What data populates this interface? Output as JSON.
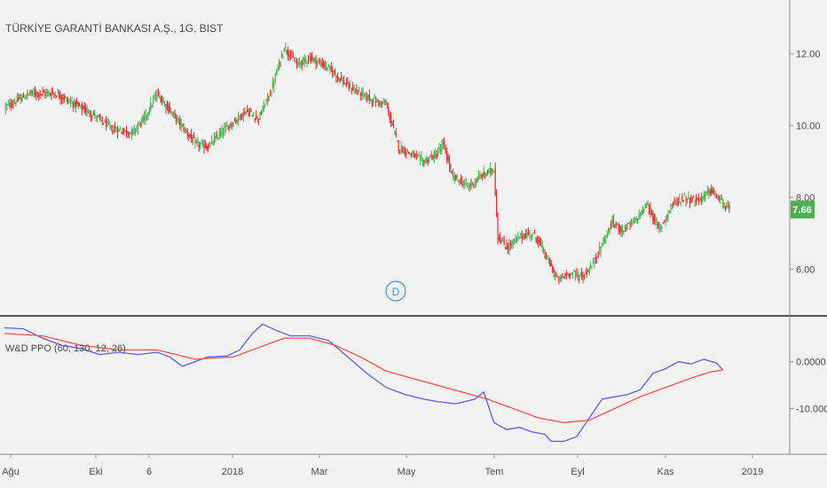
{
  "chart_data": [
    {
      "type": "candlestick",
      "title": "TÜRKİYE GARANTİ BANKASI A.Ş., 1G, BIST",
      "ylim": [
        4.8,
        13.2
      ],
      "y_ticks": [
        6,
        8,
        10,
        12
      ],
      "y_tick_labels": [
        "6.00",
        "8.00",
        "10.00",
        "12.00"
      ],
      "last_price": 7.66,
      "last_price_label": "7.66",
      "up_color": "#4caf50",
      "down_color": "#d32f2f",
      "close_anchors": [
        [
          0,
          10.5
        ],
        [
          20,
          10.9
        ],
        [
          40,
          10.9
        ],
        [
          55,
          10.6
        ],
        [
          70,
          10.3
        ],
        [
          85,
          9.9
        ],
        [
          100,
          9.8
        ],
        [
          110,
          10.2
        ],
        [
          120,
          10.9
        ],
        [
          135,
          10.2
        ],
        [
          150,
          9.5
        ],
        [
          160,
          9.4
        ],
        [
          170,
          9.8
        ],
        [
          180,
          10.1
        ],
        [
          190,
          10.4
        ],
        [
          200,
          10.2
        ],
        [
          210,
          11.0
        ],
        [
          220,
          12.2
        ],
        [
          230,
          11.7
        ],
        [
          240,
          11.9
        ],
        [
          255,
          11.6
        ],
        [
          270,
          11.1
        ],
        [
          280,
          10.9
        ],
        [
          290,
          10.7
        ],
        [
          300,
          10.6
        ],
        [
          310,
          9.4
        ],
        [
          320,
          9.2
        ],
        [
          330,
          9.0
        ],
        [
          340,
          9.2
        ],
        [
          345,
          9.5
        ],
        [
          352,
          8.6
        ],
        [
          365,
          8.3
        ],
        [
          375,
          8.6
        ],
        [
          385,
          8.8
        ],
        [
          388,
          6.9
        ],
        [
          395,
          6.6
        ],
        [
          405,
          6.9
        ],
        [
          415,
          7.0
        ],
        [
          420,
          6.8
        ],
        [
          428,
          6.2
        ],
        [
          435,
          5.7
        ],
        [
          445,
          5.9
        ],
        [
          455,
          5.8
        ],
        [
          462,
          6.1
        ],
        [
          470,
          6.7
        ],
        [
          478,
          7.3
        ],
        [
          485,
          7.1
        ],
        [
          495,
          7.3
        ],
        [
          505,
          7.8
        ],
        [
          515,
          7.1
        ],
        [
          525,
          7.8
        ],
        [
          535,
          8.0
        ],
        [
          545,
          7.9
        ],
        [
          555,
          8.2
        ],
        [
          562,
          7.95
        ],
        [
          570,
          7.66
        ]
      ]
    },
    {
      "type": "line",
      "title": "W&D PPO (60, 130, 12, 26)",
      "ylim": [
        -19,
        9
      ],
      "y_ticks": [
        0,
        -10
      ],
      "y_tick_labels": [
        "0.0000",
        "-10.0000"
      ],
      "x_tick_labels": [
        "Ağu",
        "Eki",
        "6",
        "2018",
        "Mar",
        "May",
        "Tem",
        "Eyl",
        "Kas",
        "2019"
      ],
      "series": [
        {
          "color": "#5b5fe8",
          "points": [
            [
              0,
              7.2
            ],
            [
              15,
              7.0
            ],
            [
              30,
              5.0
            ],
            [
              45,
              3.5
            ],
            [
              60,
              2.8
            ],
            [
              75,
              1.5
            ],
            [
              90,
              2.0
            ],
            [
              105,
              1.5
            ],
            [
              120,
              2.0
            ],
            [
              130,
              1.0
            ],
            [
              140,
              -1.0
            ],
            [
              150,
              0.0
            ],
            [
              160,
              1.0
            ],
            [
              175,
              1.2
            ],
            [
              185,
              2.5
            ],
            [
              195,
              6.0
            ],
            [
              203,
              8.0
            ],
            [
              215,
              6.5
            ],
            [
              225,
              5.5
            ],
            [
              240,
              5.5
            ],
            [
              255,
              4.5
            ],
            [
              270,
              1.0
            ],
            [
              285,
              -2.5
            ],
            [
              300,
              -5.5
            ],
            [
              315,
              -7.0
            ],
            [
              330,
              -8.0
            ],
            [
              340,
              -8.5
            ],
            [
              355,
              -9.0
            ],
            [
              370,
              -8.0
            ],
            [
              377,
              -6.5
            ],
            [
              385,
              -13.0
            ],
            [
              395,
              -14.5
            ],
            [
              405,
              -14.0
            ],
            [
              415,
              -15.0
            ],
            [
              425,
              -15.5
            ],
            [
              430,
              -17.0
            ],
            [
              440,
              -17.0
            ],
            [
              450,
              -16.0
            ],
            [
              460,
              -12.0
            ],
            [
              470,
              -8.0
            ],
            [
              480,
              -7.5
            ],
            [
              490,
              -7.0
            ],
            [
              500,
              -6.0
            ],
            [
              510,
              -2.5
            ],
            [
              520,
              -1.5
            ],
            [
              530,
              0.0
            ],
            [
              540,
              -0.5
            ],
            [
              550,
              0.5
            ],
            [
              560,
              -0.3
            ],
            [
              565,
              -1.8
            ]
          ]
        },
        {
          "color": "#ef5350",
          "points": [
            [
              0,
              6.0
            ],
            [
              30,
              5.5
            ],
            [
              60,
              3.5
            ],
            [
              90,
              2.5
            ],
            [
              120,
              2.5
            ],
            [
              150,
              0.5
            ],
            [
              180,
              1.0
            ],
            [
              200,
              3.0
            ],
            [
              220,
              5.0
            ],
            [
              240,
              5.0
            ],
            [
              260,
              3.5
            ],
            [
              280,
              1.0
            ],
            [
              300,
              -2.0
            ],
            [
              320,
              -3.5
            ],
            [
              340,
              -5.0
            ],
            [
              360,
              -6.5
            ],
            [
              380,
              -8.0
            ],
            [
              400,
              -10.0
            ],
            [
              420,
              -12.0
            ],
            [
              440,
              -13.0
            ],
            [
              460,
              -12.5
            ],
            [
              480,
              -10.0
            ],
            [
              500,
              -7.5
            ],
            [
              520,
              -5.5
            ],
            [
              540,
              -3.5
            ],
            [
              555,
              -2.2
            ],
            [
              565,
              -1.8
            ]
          ]
        }
      ]
    }
  ]
}
